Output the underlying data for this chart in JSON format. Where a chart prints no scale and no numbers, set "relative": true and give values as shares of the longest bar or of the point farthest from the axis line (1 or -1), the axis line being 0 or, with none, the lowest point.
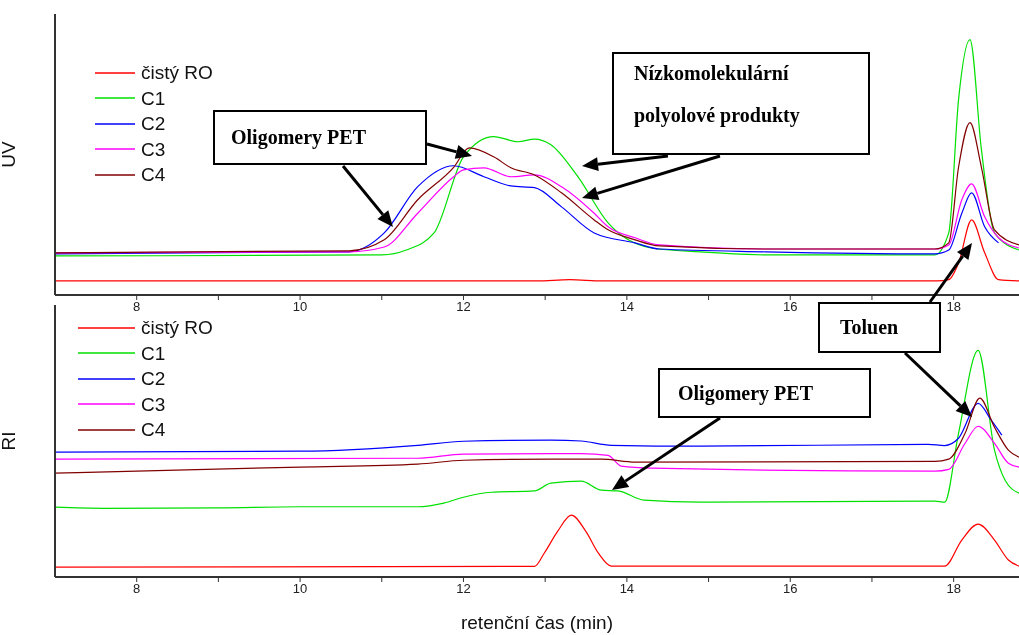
{
  "chart_data": [
    {
      "type": "line",
      "relative": true,
      "ylabel": "UV",
      "legend": "top left",
      "xlim": [
        7,
        18.8
      ],
      "xticks": [
        8,
        {
          "value": 9,
          "label": null
        },
        10,
        {
          "value": 11,
          "label": null
        },
        12,
        {
          "value": 13,
          "label": null
        },
        14,
        {
          "value": 15,
          "label": null
        },
        16,
        {
          "value": 17,
          "label": null
        },
        18
      ],
      "annotations": [
        "Oligomery PET",
        "Nízkomolekulární polyolové produkty"
      ],
      "series": [
        {
          "name": "čistý RO",
          "color": "#ff0000",
          "x": [
            7,
            12.9,
            13.3,
            13.7,
            17.8,
            17.94,
            18.06,
            18.22,
            18.38,
            18.55,
            18.8
          ],
          "values": [
            0.055,
            0.055,
            0.06,
            0.055,
            0.055,
            0.06,
            0.125,
            0.294,
            0.165,
            0.06,
            0.055
          ]
        },
        {
          "name": "C1",
          "color": "#00e000",
          "x": [
            7,
            11.0,
            11.3,
            11.64,
            12.0,
            12.37,
            12.67,
            12.87,
            13.07,
            13.4,
            13.77,
            14.3,
            14.9,
            15.7,
            17.77,
            17.94,
            18.06,
            18.2,
            18.34,
            18.5,
            18.8
          ],
          "values": [
            0.153,
            0.157,
            0.176,
            0.243,
            0.541,
            0.62,
            0.6,
            0.61,
            0.588,
            0.463,
            0.282,
            0.184,
            0.169,
            0.157,
            0.157,
            0.243,
            0.765,
            1,
            0.569,
            0.243,
            0.176
          ]
        },
        {
          "name": "C2",
          "color": "#0000ff",
          "x": [
            7,
            10.6,
            11.03,
            11.44,
            11.88,
            12.25,
            12.58,
            12.87,
            13.2,
            13.6,
            14.1,
            14.4,
            15.7,
            17.77,
            17.94,
            18.1,
            18.22,
            18.38,
            18.55
          ],
          "values": [
            0.161,
            0.169,
            0.243,
            0.424,
            0.506,
            0.463,
            0.427,
            0.42,
            0.345,
            0.243,
            0.204,
            0.18,
            0.169,
            0.161,
            0.176,
            0.32,
            0.4,
            0.267,
            0.204
          ]
        },
        {
          "name": "C3",
          "color": "#ff00ff",
          "x": [
            7,
            10.6,
            11.03,
            11.44,
            11.88,
            12.0,
            12.25,
            12.58,
            12.87,
            13.2,
            13.6,
            13.77,
            14.1,
            14.4,
            15.7,
            17.77,
            17.94,
            18.1,
            18.22,
            18.38,
            18.55,
            18.8
          ],
          "values": [
            0.165,
            0.169,
            0.188,
            0.32,
            0.463,
            0.49,
            0.498,
            0.463,
            0.47,
            0.424,
            0.32,
            0.267,
            0.224,
            0.196,
            0.18,
            0.18,
            0.196,
            0.373,
            0.435,
            0.306,
            0.224,
            0.184
          ]
        },
        {
          "name": "C4",
          "color": "#800000",
          "x": [
            7,
            10.6,
            11.03,
            11.44,
            11.88,
            12.07,
            12.37,
            12.58,
            12.87,
            13.2,
            13.6,
            13.77,
            14.1,
            14.4,
            15.7,
            17.77,
            17.94,
            18.06,
            18.2,
            18.34,
            18.5,
            18.8
          ],
          "values": [
            0.165,
            0.173,
            0.216,
            0.373,
            0.5,
            0.576,
            0.541,
            0.498,
            0.47,
            0.4,
            0.294,
            0.255,
            0.216,
            0.192,
            0.18,
            0.18,
            0.204,
            0.5,
            0.675,
            0.5,
            0.255,
            0.196
          ]
        }
      ]
    },
    {
      "type": "line",
      "relative": true,
      "ylabel": "RI",
      "xlabel": "retenční čas (min)",
      "legend": "top left",
      "xlim": [
        7,
        18.8
      ],
      "xticks": [
        8,
        {
          "value": 9,
          "label": null
        },
        10,
        {
          "value": 11,
          "label": null
        },
        12,
        {
          "value": 13,
          "label": null
        },
        14,
        {
          "value": 15,
          "label": null
        },
        16,
        {
          "value": 17,
          "label": null
        },
        18
      ],
      "annotations": [
        "Toluen",
        "Oligomery PET"
      ],
      "series": [
        {
          "name": "čistý RO",
          "color": "#ff0000",
          "x": [
            7,
            12.87,
            12.99,
            13.15,
            13.32,
            13.5,
            13.65,
            13.81,
            17.89,
            18.1,
            18.3,
            18.5,
            18.67,
            18.8
          ],
          "values": [
            0.044,
            0.047,
            0.106,
            0.2,
            0.273,
            0.2,
            0.106,
            0.048,
            0.048,
            0.163,
            0.233,
            0.163,
            0.075,
            0.048
          ]
        },
        {
          "name": "C1",
          "color": "#00e000",
          "x": [
            7,
            7.6,
            9,
            10,
            11.44,
            11.76,
            12.0,
            12.34,
            12.87,
            13.07,
            13.44,
            13.69,
            13.89,
            14.21,
            14.9,
            17.77,
            17.89,
            18.06,
            18.3,
            18.5,
            18.63,
            18.8
          ],
          "values": [
            0.308,
            0.303,
            0.305,
            0.31,
            0.31,
            0.326,
            0.352,
            0.374,
            0.38,
            0.414,
            0.423,
            0.383,
            0.38,
            0.339,
            0.33,
            0.335,
            0.33,
            0.634,
            1,
            0.56,
            0.427,
            0.37
          ]
        },
        {
          "name": "C2",
          "color": "#0000ff",
          "x": [
            7,
            10,
            11.44,
            12,
            13.07,
            13.44,
            13.81,
            14.9,
            17.69,
            17.89,
            18.06,
            18.3,
            18.46,
            18.59
          ],
          "values": [
            0.551,
            0.555,
            0.581,
            0.599,
            0.604,
            0.6,
            0.581,
            0.577,
            0.585,
            0.58,
            0.612,
            0.766,
            0.692,
            0.626
          ]
        },
        {
          "name": "C3",
          "color": "#ff00ff",
          "x": [
            7,
            11.44,
            12,
            13.07,
            13.44,
            13.77,
            13.93,
            14.3,
            17.77,
            17.94,
            18.14,
            18.3,
            18.5,
            18.67,
            18.8
          ],
          "values": [
            0.52,
            0.524,
            0.542,
            0.544,
            0.544,
            0.537,
            0.489,
            0.48,
            0.467,
            0.475,
            0.59,
            0.665,
            0.59,
            0.502,
            0.485
          ]
        },
        {
          "name": "C4",
          "color": "#800000",
          "x": [
            7,
            10,
            11.44,
            12,
            13.07,
            13.69,
            14.1,
            17.77,
            17.94,
            18.14,
            18.32,
            18.5,
            18.67,
            18.8
          ],
          "values": [
            0.458,
            0.485,
            0.498,
            0.515,
            0.52,
            0.52,
            0.507,
            0.51,
            0.52,
            0.634,
            0.789,
            0.661,
            0.56,
            0.529
          ]
        }
      ]
    }
  ]
}
